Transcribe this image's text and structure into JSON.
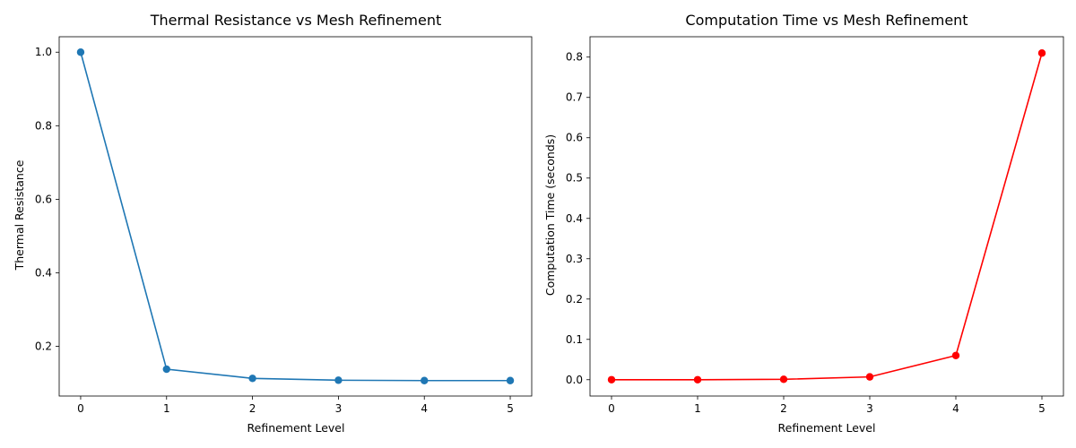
{
  "chart_data": [
    {
      "type": "line",
      "title": "Thermal Resistance vs Mesh Refinement",
      "xlabel": "Refinement Level",
      "ylabel": "Thermal Resistance",
      "x": [
        0,
        1,
        2,
        3,
        4,
        5
      ],
      "series": [
        {
          "values": [
            1.0,
            0.138,
            0.113,
            0.108,
            0.107,
            0.107
          ],
          "color": "#1f77b4",
          "marker": "circle"
        }
      ],
      "xlim": [
        -0.25,
        5.25
      ],
      "ylim": [
        0.065,
        1.042
      ],
      "xticks": [
        0,
        1,
        2,
        3,
        4,
        5
      ],
      "xtick_labels": [
        "0",
        "1",
        "2",
        "3",
        "4",
        "5"
      ],
      "yticks": [
        0.2,
        0.4,
        0.6,
        0.8,
        1.0
      ],
      "ytick_labels": [
        "0.2",
        "0.4",
        "0.6",
        "0.8",
        "1.0"
      ],
      "grid": false,
      "legend": false
    },
    {
      "type": "line",
      "title": "Computation Time vs Mesh Refinement",
      "xlabel": "Refinement Level",
      "ylabel": "Computation Time (seconds)",
      "x": [
        0,
        1,
        2,
        3,
        4,
        5
      ],
      "series": [
        {
          "values": [
            0.0,
            0.0,
            0.001,
            0.007,
            0.06,
            0.81
          ],
          "color": "#ff0000",
          "marker": "circle"
        }
      ],
      "xlim": [
        -0.25,
        5.25
      ],
      "ylim": [
        -0.0405,
        0.8505
      ],
      "xticks": [
        0,
        1,
        2,
        3,
        4,
        5
      ],
      "xtick_labels": [
        "0",
        "1",
        "2",
        "3",
        "4",
        "5"
      ],
      "yticks": [
        0.0,
        0.1,
        0.2,
        0.3,
        0.4,
        0.5,
        0.6,
        0.7,
        0.8
      ],
      "ytick_labels": [
        "0.0",
        "0.1",
        "0.2",
        "0.3",
        "0.4",
        "0.5",
        "0.6",
        "0.7",
        "0.8"
      ],
      "grid": false,
      "legend": false
    }
  ]
}
